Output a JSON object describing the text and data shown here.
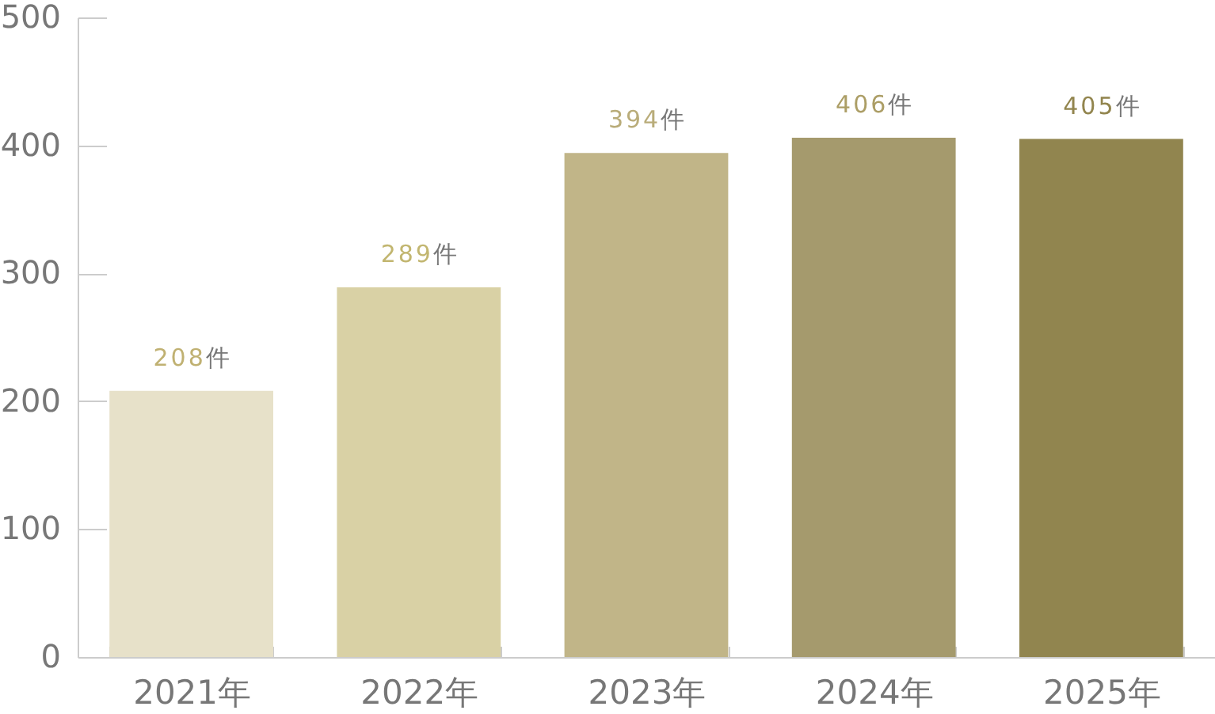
{
  "chart_data": {
    "type": "bar",
    "categories": [
      "2021年",
      "2022年",
      "2023年",
      "2024年",
      "2025年"
    ],
    "values": [
      208,
      289,
      394,
      406,
      405
    ],
    "colors": [
      "#e7e1c9",
      "#d9d1a5",
      "#c1b588",
      "#a59a6d",
      "#91854f"
    ],
    "value_labels": [
      "208件",
      "289件",
      "394件",
      "406件",
      "405件"
    ],
    "ylim": [
      0,
      500
    ],
    "yticks": [
      0,
      100,
      200,
      300,
      400,
      500
    ]
  }
}
